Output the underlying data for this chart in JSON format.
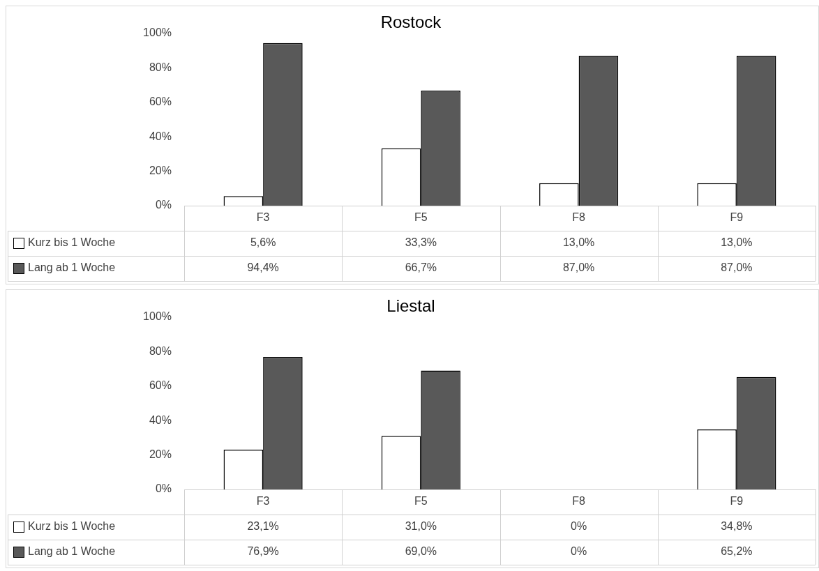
{
  "chart_data": [
    {
      "type": "bar",
      "title": "Rostock",
      "categories": [
        "F3",
        "F5",
        "F8",
        "F9"
      ],
      "series": [
        {
          "name": "Kurz bis 1 Woche",
          "color": "#ffffff",
          "values": [
            5.6,
            33.3,
            13.0,
            13.0
          ],
          "value_labels": [
            "5,6%",
            "33,3%",
            "13,0%",
            "13,0%"
          ]
        },
        {
          "name": "Lang ab 1 Woche",
          "color": "#595959",
          "values": [
            94.4,
            66.7,
            87.0,
            87.0
          ],
          "value_labels": [
            "94,4%",
            "66,7%",
            "87,0%",
            "87,0%"
          ]
        }
      ],
      "ylim": [
        0,
        100
      ],
      "yticks": [
        {
          "value": 0,
          "label": "0%"
        },
        {
          "value": 20,
          "label": "20%"
        },
        {
          "value": 40,
          "label": "40%"
        },
        {
          "value": 60,
          "label": "60%"
        },
        {
          "value": 80,
          "label": "80%"
        },
        {
          "value": 100,
          "label": "100%"
        }
      ],
      "grid": false,
      "legend": "bottom left"
    },
    {
      "type": "bar",
      "title": "Liestal",
      "categories": [
        "F3",
        "F5",
        "F8",
        "F9"
      ],
      "series": [
        {
          "name": "Kurz bis 1 Woche",
          "color": "#ffffff",
          "values": [
            23.1,
            31.0,
            0,
            34.8
          ],
          "value_labels": [
            "23,1%",
            "31,0%",
            "0%",
            "34,8%"
          ]
        },
        {
          "name": "Lang ab 1 Woche",
          "color": "#595959",
          "values": [
            76.9,
            69.0,
            0,
            65.2
          ],
          "value_labels": [
            "76,9%",
            "69,0%",
            "0%",
            "65,2%"
          ]
        }
      ],
      "ylim": [
        0,
        100
      ],
      "yticks": [
        {
          "value": 0,
          "label": "0%"
        },
        {
          "value": 20,
          "label": "20%"
        },
        {
          "value": 40,
          "label": "40%"
        },
        {
          "value": 60,
          "label": "60%"
        },
        {
          "value": 80,
          "label": "80%"
        },
        {
          "value": 100,
          "label": "100%"
        }
      ],
      "grid": false,
      "legend": "bottom left"
    }
  ]
}
